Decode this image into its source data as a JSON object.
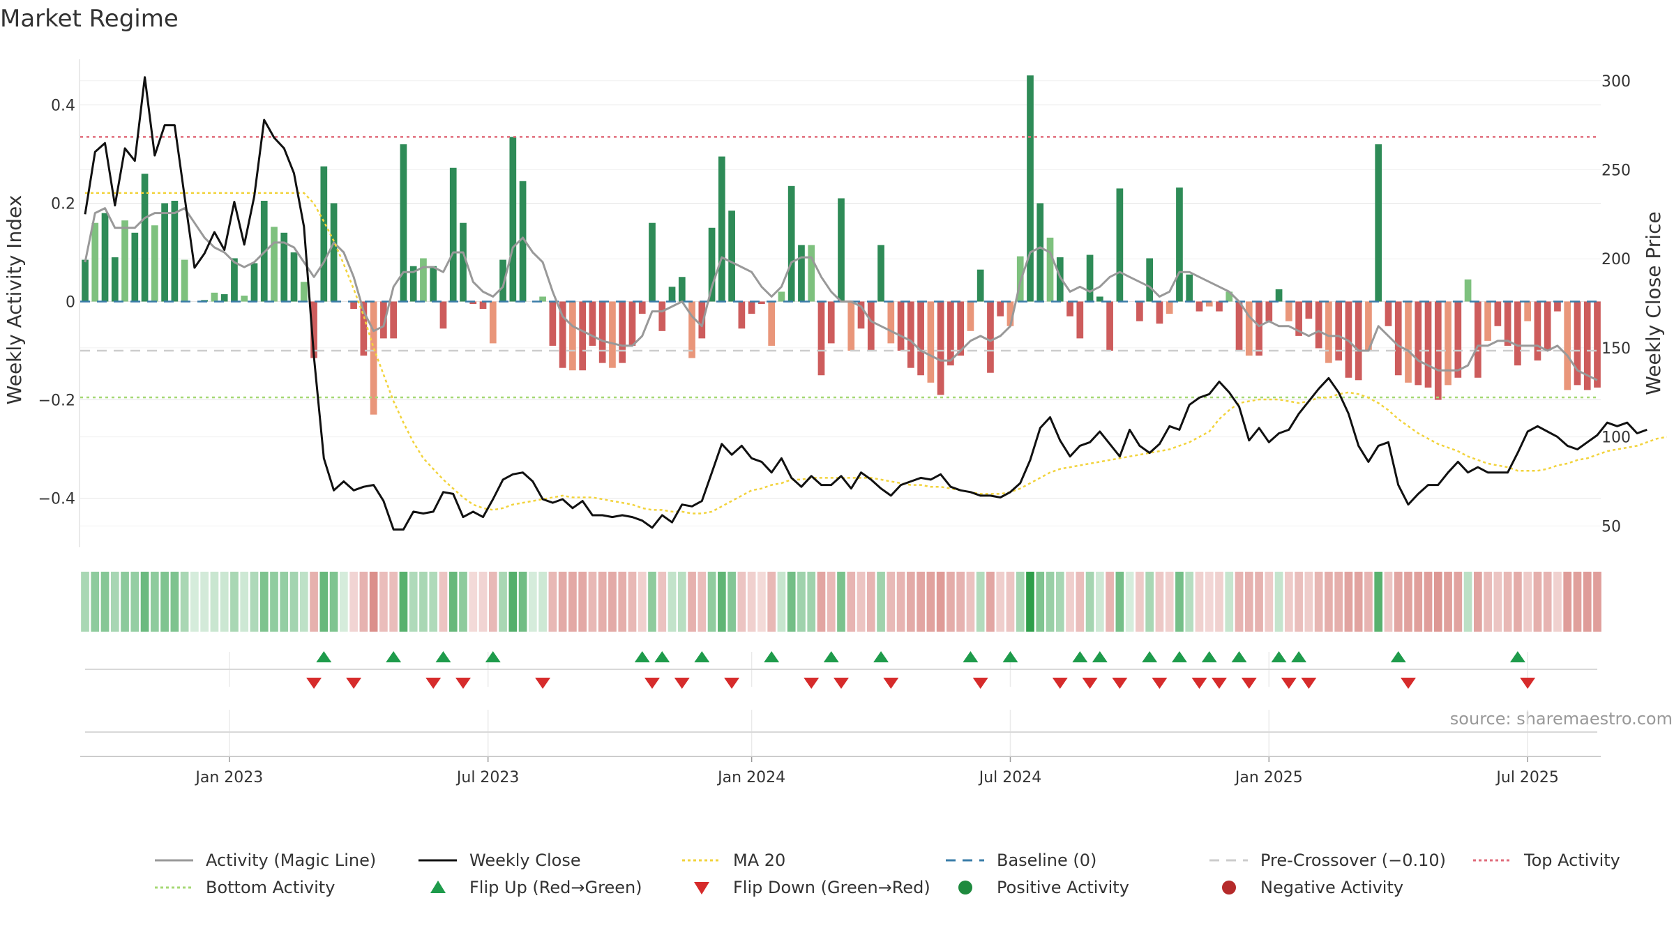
{
  "chart_data": {
    "type": "bar",
    "title": "Market Regime",
    "source_note": "source: sharemaestro.com",
    "y_left_label": "Weekly Activity Index",
    "y_right_label": "Weekly Close Price",
    "y_left_ticks": [
      {
        "v": 0.4,
        "t": "0.4"
      },
      {
        "v": 0.2,
        "t": "0.2"
      },
      {
        "v": 0,
        "t": "0"
      },
      {
        "v": -0.2,
        "t": "−0.2"
      },
      {
        "v": -0.4,
        "t": "−0.4"
      }
    ],
    "y_right_ticks": [
      {
        "v": 300,
        "t": "300"
      },
      {
        "v": 250,
        "t": "250"
      },
      {
        "v": 200,
        "t": "200"
      },
      {
        "v": 150,
        "t": "150"
      },
      {
        "v": 100,
        "t": "100"
      },
      {
        "v": 50,
        "t": "50"
      }
    ],
    "ylim_left": [
      -0.5,
      0.5
    ],
    "ylim_right": [
      38,
      314
    ],
    "x_ticks": [
      {
        "i": 14.5,
        "t": "Jan 2023"
      },
      {
        "i": 40.5,
        "t": "Jul 2023"
      },
      {
        "i": 67,
        "t": "Jan 2024"
      },
      {
        "i": 93,
        "t": "Jul 2024"
      },
      {
        "i": 119,
        "t": "Jan 2025"
      },
      {
        "i": 145,
        "t": "Jul 2025"
      }
    ],
    "reference_lines": {
      "top_activity": 0.335,
      "pre_crossover": -0.1,
      "bottom_activity": -0.195,
      "baseline": 0
    },
    "activity": [
      0.085,
      0.16,
      0.18,
      0.09,
      0.165,
      0.14,
      0.26,
      0.155,
      0.2,
      0.205,
      0.085,
      0.0,
      0.003,
      0.018,
      0.015,
      0.088,
      0.012,
      0.078,
      0.205,
      0.152,
      0.14,
      0.1,
      0.04,
      -0.115,
      0.275,
      0.2,
      0.0,
      -0.015,
      -0.11,
      -0.23,
      -0.075,
      -0.075,
      0.32,
      0.072,
      0.088,
      0.072,
      -0.055,
      0.272,
      0.16,
      -0.005,
      -0.015,
      -0.085,
      0.085,
      0.335,
      0.245,
      0.0,
      0.01,
      -0.09,
      -0.135,
      -0.14,
      -0.14,
      -0.09,
      -0.125,
      -0.135,
      -0.125,
      -0.09,
      -0.025,
      0.16,
      -0.06,
      0.03,
      0.05,
      -0.115,
      -0.075,
      0.15,
      0.295,
      0.185,
      -0.055,
      -0.025,
      -0.005,
      -0.09,
      0.02,
      0.235,
      0.115,
      0.115,
      -0.15,
      -0.085,
      0.21,
      -0.1,
      -0.055,
      -0.1,
      0.115,
      -0.085,
      -0.1,
      -0.135,
      -0.15,
      -0.165,
      -0.19,
      -0.13,
      -0.11,
      -0.06,
      0.065,
      -0.145,
      -0.03,
      -0.05,
      0.092,
      0.46,
      0.2,
      0.13,
      0.09,
      -0.03,
      -0.075,
      0.095,
      0.01,
      -0.1,
      0.23,
      0.0,
      -0.04,
      0.088,
      -0.045,
      -0.025,
      0.232,
      0.055,
      -0.02,
      -0.01,
      -0.02,
      0.02,
      -0.1,
      -0.11,
      -0.11,
      -0.04,
      0.025,
      -0.04,
      -0.07,
      -0.035,
      -0.095,
      -0.125,
      -0.12,
      -0.155,
      -0.16,
      -0.1,
      0.32,
      -0.05,
      -0.15,
      -0.165,
      -0.17,
      -0.175,
      -0.2,
      -0.17,
      -0.155,
      0.045,
      -0.155,
      -0.08,
      -0.05,
      -0.09,
      -0.13,
      -0.04,
      -0.12,
      -0.1,
      -0.02,
      -0.18,
      -0.17,
      -0.18,
      -0.175
    ],
    "magic_line": [
      0.08,
      0.18,
      0.19,
      0.15,
      0.15,
      0.15,
      0.17,
      0.18,
      0.18,
      0.18,
      0.19,
      0.16,
      0.13,
      0.11,
      0.1,
      0.08,
      0.07,
      0.08,
      0.1,
      0.12,
      0.12,
      0.11,
      0.08,
      0.05,
      0.08,
      0.12,
      0.1,
      0.05,
      -0.02,
      -0.06,
      -0.05,
      0.03,
      0.06,
      0.06,
      0.07,
      0.07,
      0.06,
      0.1,
      0.1,
      0.04,
      0.02,
      0.01,
      0.03,
      0.11,
      0.13,
      0.1,
      0.08,
      0.02,
      -0.03,
      -0.05,
      -0.06,
      -0.07,
      -0.08,
      -0.085,
      -0.09,
      -0.09,
      -0.07,
      -0.02,
      -0.02,
      -0.01,
      0.0,
      -0.03,
      -0.05,
      0.03,
      0.09,
      0.08,
      0.07,
      0.06,
      0.03,
      0.01,
      0.03,
      0.08,
      0.09,
      0.09,
      0.05,
      0.02,
      0.0,
      0.0,
      -0.01,
      -0.04,
      -0.05,
      -0.06,
      -0.07,
      -0.08,
      -0.1,
      -0.11,
      -0.12,
      -0.12,
      -0.1,
      -0.08,
      -0.07,
      -0.08,
      -0.07,
      -0.05,
      0.04,
      0.1,
      0.11,
      0.1,
      0.05,
      0.02,
      0.03,
      0.02,
      0.03,
      0.05,
      0.06,
      0.05,
      0.04,
      0.03,
      0.01,
      0.02,
      0.06,
      0.06,
      0.05,
      0.04,
      0.03,
      0.02,
      0.0,
      -0.03,
      -0.05,
      -0.04,
      -0.05,
      -0.05,
      -0.06,
      -0.07,
      -0.06,
      -0.07,
      -0.07,
      -0.08,
      -0.1,
      -0.1,
      -0.05,
      -0.07,
      -0.09,
      -0.1,
      -0.12,
      -0.13,
      -0.14,
      -0.14,
      -0.14,
      -0.13,
      -0.09,
      -0.09,
      -0.08,
      -0.08,
      -0.09,
      -0.09,
      -0.09,
      -0.1,
      -0.09,
      -0.11,
      -0.14,
      -0.15,
      -0.16
    ],
    "weekly_close": [
      225,
      260,
      265,
      230,
      262,
      255,
      302,
      258,
      275,
      275,
      235,
      195,
      203,
      215,
      205,
      232,
      208,
      235,
      278,
      268,
      262,
      248,
      218,
      145,
      88,
      70,
      75,
      70,
      72,
      73,
      64,
      48,
      48,
      58,
      57,
      58,
      69,
      68,
      55,
      58,
      55,
      65,
      76,
      79,
      80,
      75,
      65,
      63,
      65,
      60,
      64,
      56,
      56,
      55,
      56,
      55,
      53,
      49,
      56,
      52,
      62,
      61,
      64,
      80,
      96,
      90,
      95,
      88,
      86,
      80,
      88,
      77,
      72,
      78,
      73,
      73,
      78,
      71,
      80,
      76,
      71,
      67,
      73,
      75,
      77,
      76,
      79,
      72,
      70,
      69,
      67,
      67,
      66,
      69,
      74,
      87,
      105,
      111,
      98,
      89,
      95,
      97,
      103,
      96,
      89,
      104,
      95,
      91,
      96,
      106,
      104,
      118,
      122,
      124,
      131,
      125,
      117,
      98,
      105,
      97,
      102,
      104,
      113,
      120,
      127,
      133,
      125,
      113,
      95,
      86,
      95,
      97,
      73,
      62,
      68,
      73,
      73,
      80,
      86,
      80,
      83,
      80,
      80,
      80,
      91,
      103,
      106,
      103,
      100,
      95,
      93,
      97,
      101,
      108,
      106,
      108,
      102,
      104
    ],
    "ma20": [
      237,
      237,
      237,
      237,
      237,
      237,
      237,
      237,
      237,
      237,
      237,
      237,
      237,
      237,
      237,
      237,
      237,
      237,
      237,
      237,
      237,
      237,
      237,
      231,
      221,
      210,
      197,
      183,
      168,
      150,
      135,
      120,
      108,
      97,
      88,
      82,
      76,
      71,
      66,
      62,
      60,
      59,
      60,
      62,
      63,
      64,
      65,
      66,
      67,
      66,
      66,
      66,
      65,
      64,
      63,
      62,
      60,
      59,
      59,
      58,
      58,
      57,
      57,
      58,
      61,
      64,
      67,
      70,
      71,
      73,
      74,
      76,
      76,
      77,
      77,
      77,
      77,
      77,
      77,
      77,
      76,
      75,
      74,
      73,
      73,
      72,
      72,
      71,
      70,
      69,
      68,
      68,
      68,
      69,
      71,
      74,
      77,
      80,
      82,
      83,
      84,
      85,
      86,
      87,
      88,
      89,
      90,
      91,
      92,
      93,
      95,
      97,
      100,
      103,
      110,
      115,
      119,
      120,
      121,
      121,
      121,
      120,
      119,
      120,
      122,
      122,
      124,
      125,
      124,
      122,
      119,
      115,
      110,
      106,
      102,
      99,
      96,
      94,
      92,
      89,
      87,
      85,
      84,
      83,
      81,
      81,
      81,
      82,
      84,
      85,
      87,
      88,
      90,
      92,
      93,
      94,
      95,
      97,
      99,
      100
    ],
    "flip_up": [
      24,
      31,
      36,
      41,
      56,
      58,
      62,
      69,
      75,
      80,
      89,
      93,
      100,
      102,
      107,
      110,
      113,
      116,
      120,
      122,
      132,
      144
    ],
    "flip_down": [
      23,
      27,
      35,
      38,
      46,
      57,
      60,
      65,
      73,
      76,
      81,
      90,
      98,
      101,
      104,
      108,
      112,
      114,
      117,
      121,
      123,
      133,
      145
    ],
    "legend": [
      {
        "label": "Activity (Magic Line)",
        "kind": "line",
        "color": "#999999"
      },
      {
        "label": "Weekly Close",
        "kind": "line",
        "color": "#111111"
      },
      {
        "label": "MA 20",
        "kind": "dotted",
        "color": "#f2d33c"
      },
      {
        "label": "Baseline (0)",
        "kind": "dashed",
        "color": "#3a7ca8"
      },
      {
        "label": "Pre-Crossover (−0.10)",
        "kind": "dashed",
        "color": "#cccccc"
      },
      {
        "label": "Top Activity",
        "kind": "dotted",
        "color": "#e06b7a"
      },
      {
        "label": "Bottom Activity",
        "kind": "dotted",
        "color": "#a6d875"
      },
      {
        "label": "Flip Up (Red→Green)",
        "kind": "tri-up",
        "color": "#1e9b4b"
      },
      {
        "label": "Flip Down (Green→Red)",
        "kind": "tri-down",
        "color": "#d62b2b"
      },
      {
        "label": "Positive Activity",
        "kind": "dot",
        "color": "#1e8a3e"
      },
      {
        "label": "Negative Activity",
        "kind": "dot",
        "color": "#b52a2a"
      }
    ],
    "colors": {
      "pos_strong": "#2e8b57",
      "pos_light": "#7ec17e",
      "neg_strong": "#cd5c5c",
      "neg_light": "#e9967a",
      "grid": "#e6e6e6",
      "axis": "#cccccc"
    }
  }
}
